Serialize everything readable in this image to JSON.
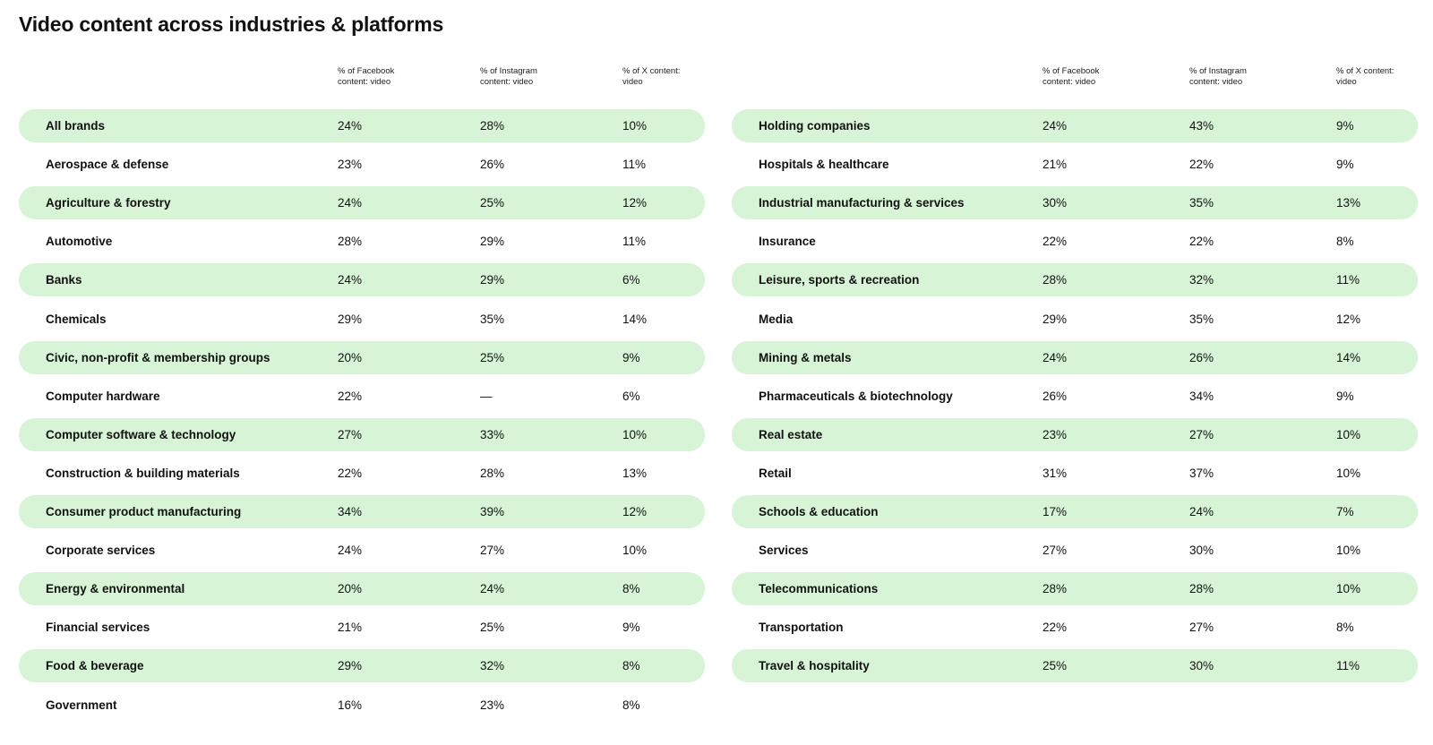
{
  "title": "Video content across industries & platforms",
  "columns": [
    "% of Facebook content: video",
    "% of Instagram content: video",
    "% of X content: video"
  ],
  "chart_data": {
    "type": "table",
    "title": "Video content across industries & platforms",
    "columns": [
      "% of Facebook content: video",
      "% of Instagram content: video",
      "% of X content: video"
    ],
    "left": [
      {
        "label": "All brands",
        "values": [
          "24%",
          "28%",
          "10%"
        ]
      },
      {
        "label": "Aerospace & defense",
        "values": [
          "23%",
          "26%",
          "11%"
        ]
      },
      {
        "label": "Agriculture & forestry",
        "values": [
          "24%",
          "25%",
          "12%"
        ]
      },
      {
        "label": "Automotive",
        "values": [
          "28%",
          "29%",
          "11%"
        ]
      },
      {
        "label": "Banks",
        "values": [
          "24%",
          "29%",
          "6%"
        ]
      },
      {
        "label": "Chemicals",
        "values": [
          "29%",
          "35%",
          "14%"
        ]
      },
      {
        "label": "Civic, non-profit & membership groups",
        "values": [
          "20%",
          "25%",
          "9%"
        ]
      },
      {
        "label": "Computer hardware",
        "values": [
          "22%",
          "—",
          "6%"
        ]
      },
      {
        "label": "Computer software & technology",
        "values": [
          "27%",
          "33%",
          "10%"
        ]
      },
      {
        "label": "Construction & building materials",
        "values": [
          "22%",
          "28%",
          "13%"
        ]
      },
      {
        "label": "Consumer product manufacturing",
        "values": [
          "34%",
          "39%",
          "12%"
        ]
      },
      {
        "label": "Corporate services",
        "values": [
          "24%",
          "27%",
          "10%"
        ]
      },
      {
        "label": "Energy & environmental",
        "values": [
          "20%",
          "24%",
          "8%"
        ]
      },
      {
        "label": "Financial services",
        "values": [
          "21%",
          "25%",
          "9%"
        ]
      },
      {
        "label": "Food & beverage",
        "values": [
          "29%",
          "32%",
          "8%"
        ]
      },
      {
        "label": "Government",
        "values": [
          "16%",
          "23%",
          "8%"
        ]
      }
    ],
    "right": [
      {
        "label": "Holding companies",
        "values": [
          "24%",
          "43%",
          "9%"
        ]
      },
      {
        "label": "Hospitals & healthcare",
        "values": [
          "21%",
          "22%",
          "9%"
        ]
      },
      {
        "label": "Industrial manufacturing & services",
        "values": [
          "30%",
          "35%",
          "13%"
        ]
      },
      {
        "label": "Insurance",
        "values": [
          "22%",
          "22%",
          "8%"
        ]
      },
      {
        "label": "Leisure, sports & recreation",
        "values": [
          "28%",
          "32%",
          "11%"
        ]
      },
      {
        "label": "Media",
        "values": [
          "29%",
          "35%",
          "12%"
        ]
      },
      {
        "label": "Mining & metals",
        "values": [
          "24%",
          "26%",
          "14%"
        ]
      },
      {
        "label": "Pharmaceuticals & biotechnology",
        "values": [
          "26%",
          "34%",
          "9%"
        ]
      },
      {
        "label": "Real estate",
        "values": [
          "23%",
          "27%",
          "10%"
        ]
      },
      {
        "label": "Retail",
        "values": [
          "31%",
          "37%",
          "10%"
        ]
      },
      {
        "label": "Schools & education",
        "values": [
          "17%",
          "24%",
          "7%"
        ]
      },
      {
        "label": "Services",
        "values": [
          "27%",
          "30%",
          "10%"
        ]
      },
      {
        "label": "Telecommunications",
        "values": [
          "28%",
          "28%",
          "10%"
        ]
      },
      {
        "label": "Transportation",
        "values": [
          "22%",
          "27%",
          "8%"
        ]
      },
      {
        "label": "Travel & hospitality",
        "values": [
          "25%",
          "30%",
          "11%"
        ]
      }
    ]
  },
  "colors": {
    "row_shade": "#d7f5d6",
    "text": "#111111",
    "background": "#ffffff"
  }
}
